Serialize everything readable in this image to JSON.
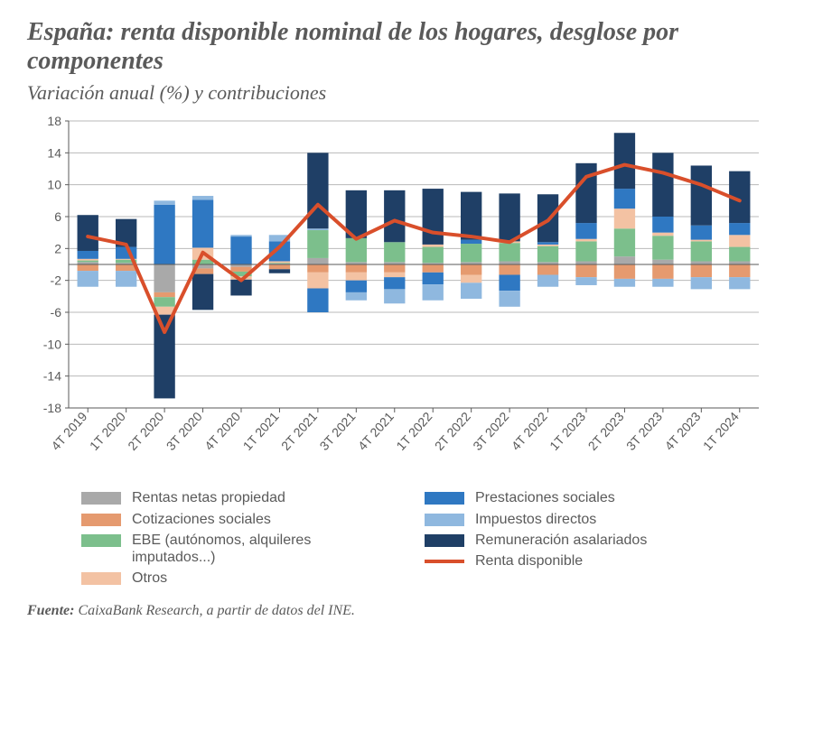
{
  "title": "España: renta disponible nominal de los hogares, desglose por componentes",
  "subtitle": "Variación anual (%) y contribuciones",
  "source_label": "Fuente:",
  "source_text": " CaixaBank Research, a partir de datos del INE.",
  "chart": {
    "type": "stacked-bar-with-line",
    "background_color": "#ffffff",
    "grid_color": "#b9b9b9",
    "axis_color": "#5a5a5a",
    "tick_color": "#5a5a5a",
    "tick_fontsize": 14,
    "ylim": [
      -18,
      18
    ],
    "yticks": [
      -18,
      -14,
      -10,
      -6,
      -2,
      2,
      6,
      10,
      14,
      18
    ],
    "bar_width_ratio": 0.55,
    "categories": [
      "4T 2019",
      "1T 2020",
      "2T 2020",
      "3T 2020",
      "4T 2020",
      "1T 2021",
      "2T 2021",
      "3T 2021",
      "4T 2021",
      "1T 2022",
      "2T 2022",
      "3T 2022",
      "4T 2022",
      "1T 2023",
      "2T 2023",
      "3T 2023",
      "4T 2023",
      "1T 2024"
    ],
    "series": [
      {
        "key": "rentas_propiedad",
        "label": "Rentas netas propiedad",
        "color": "#a9a9a9",
        "values": [
          0.3,
          0.2,
          -3.5,
          -0.5,
          -0.3,
          0.1,
          0.8,
          0.3,
          0.3,
          0.2,
          0.3,
          0.4,
          0.3,
          0.4,
          1.0,
          0.6,
          0.4,
          0.4
        ]
      },
      {
        "key": "cotizaciones",
        "label": "Cotizaciones sociales",
        "color": "#e59a6f",
        "values": [
          -0.8,
          -0.8,
          -0.6,
          -0.7,
          -0.6,
          -0.6,
          -1.0,
          -1.0,
          -1.0,
          -1.0,
          -1.3,
          -1.3,
          -1.3,
          -1.6,
          -1.8,
          -1.8,
          -1.6,
          -1.6
        ]
      },
      {
        "key": "ebe",
        "label": "EBE (autónomos, alquileres imputados...)",
        "color": "#7cbf8c",
        "values": [
          0.2,
          0.4,
          -1.2,
          0.6,
          -0.6,
          0.1,
          3.5,
          3.0,
          2.5,
          2.0,
          2.3,
          2.3,
          2.0,
          2.5,
          3.5,
          3.0,
          2.5,
          1.8
        ]
      },
      {
        "key": "otros",
        "label": "Otros",
        "color": "#f3c2a3",
        "values": [
          0.2,
          0.1,
          -1.0,
          1.5,
          -0.4,
          0.2,
          -2.0,
          -1.0,
          -0.6,
          0.3,
          -1.0,
          0.2,
          0.2,
          0.3,
          2.5,
          0.4,
          0.2,
          1.5
        ]
      },
      {
        "key": "prestaciones",
        "label": "Prestaciones sociales",
        "color": "#2f78c2",
        "values": [
          1.0,
          1.5,
          7.5,
          6.0,
          3.5,
          2.5,
          -3.0,
          -1.5,
          -1.5,
          -1.5,
          0.5,
          -2.0,
          0.3,
          2.0,
          2.5,
          2.0,
          1.8,
          1.5
        ]
      },
      {
        "key": "impuestos",
        "label": "Impuestos directos",
        "color": "#8fb8df",
        "values": [
          -2.0,
          -2.0,
          0.5,
          0.5,
          0.2,
          0.8,
          0.2,
          -1.0,
          -1.8,
          -2.0,
          -2.0,
          -2.0,
          -1.5,
          -1.0,
          -1.0,
          -1.0,
          -1.5,
          -1.5
        ]
      },
      {
        "key": "remuneracion",
        "label": "Remuneración asalariados",
        "color": "#1f3f66",
        "values": [
          4.5,
          3.5,
          -10.5,
          -4.5,
          -2.0,
          -0.5,
          9.5,
          6.0,
          6.5,
          7.0,
          6.0,
          6.0,
          6.0,
          7.5,
          7.0,
          8.0,
          7.5,
          6.5
        ]
      }
    ],
    "line": {
      "key": "renta_disponible",
      "label": "Renta disponible",
      "color": "#d94f2b",
      "width": 4,
      "values": [
        3.5,
        2.5,
        -8.5,
        1.5,
        -2.0,
        2.2,
        7.5,
        3.2,
        5.5,
        4.0,
        3.5,
        2.8,
        5.5,
        11.0,
        12.5,
        11.5,
        10.0,
        8.0
      ]
    }
  },
  "legend": {
    "left": [
      "rentas_propiedad",
      "cotizaciones",
      "ebe",
      "otros"
    ],
    "right": [
      "prestaciones",
      "impuestos",
      "remuneracion"
    ]
  }
}
